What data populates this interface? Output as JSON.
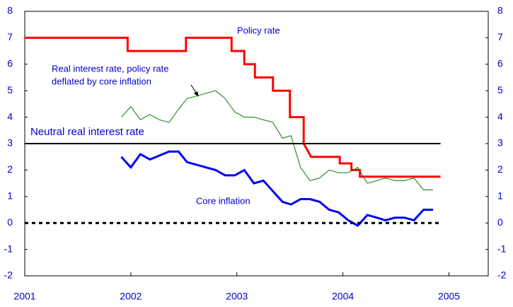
{
  "chart_data": {
    "type": "line",
    "xlim": [
      2001,
      2005.37
    ],
    "xticks": [
      2001,
      2002,
      2003,
      2004,
      2005
    ],
    "ylim": [
      -2,
      8
    ],
    "yticks": [
      -2,
      -1,
      0,
      1,
      2,
      3,
      4,
      5,
      6,
      7,
      8
    ],
    "y2lim": [
      -2,
      8
    ],
    "y2ticks": [
      -2,
      -1,
      0,
      1,
      2,
      3,
      4,
      5,
      6,
      7,
      8
    ],
    "series": [
      {
        "name": "Policy rate",
        "color": "#ff0000",
        "line_width": 3,
        "x": [
          2001,
          2001.97,
          2001.97,
          2002.52,
          2002.52,
          2002.95,
          2002.95,
          2003.07,
          2003.07,
          2003.17,
          2003.17,
          2003.34,
          2003.34,
          2003.5,
          2003.5,
          2003.63,
          2003.63,
          2003.7,
          2003.97,
          2003.97,
          2004.08,
          2004.08,
          2004.16,
          2004.16,
          2004.92
        ],
        "values": [
          7,
          7,
          6.5,
          6.5,
          7,
          7,
          6.5,
          6.5,
          6,
          6,
          5.5,
          5.5,
          5,
          5,
          4,
          4,
          3,
          2.5,
          2.5,
          2.25,
          2.25,
          2,
          2,
          1.75,
          1.75
        ]
      },
      {
        "name_lines": [
          "Real interest rate, policy rate",
          "deflated by core inflation"
        ],
        "color": "#008000",
        "line_width": 1,
        "x": [
          2001.91,
          2002.0,
          2002.09,
          2002.18,
          2002.27,
          2002.36,
          2002.45,
          2002.53,
          2002.62,
          2002.71,
          2002.8,
          2002.89,
          2002.98,
          2003.07,
          2003.16,
          2003.25,
          2003.34,
          2003.43,
          2003.51,
          2003.6,
          2003.69,
          2003.78,
          2003.87,
          2003.96,
          2004.05,
          2004.14,
          2004.23,
          2004.32,
          2004.4,
          2004.49,
          2004.58,
          2004.67,
          2004.76,
          2004.85
        ],
        "values": [
          4.0,
          4.4,
          3.9,
          4.1,
          3.9,
          3.8,
          4.3,
          4.7,
          4.8,
          4.9,
          5.0,
          4.7,
          4.2,
          4.0,
          4.0,
          3.9,
          3.8,
          3.2,
          3.3,
          2.1,
          1.6,
          1.7,
          2.0,
          1.9,
          1.9,
          2.1,
          1.5,
          1.6,
          1.7,
          1.6,
          1.6,
          1.7,
          1.25,
          1.25
        ]
      },
      {
        "name": "Neutral real interest rate",
        "color": "#000000",
        "line_width": 2,
        "x": [
          2001,
          2004.92
        ],
        "values": [
          3,
          3
        ]
      },
      {
        "name": "Core inflation",
        "color": "#0000ff",
        "line_width": 3,
        "x": [
          2001.91,
          2002.0,
          2002.09,
          2002.18,
          2002.27,
          2002.36,
          2002.45,
          2002.53,
          2002.62,
          2002.71,
          2002.8,
          2002.89,
          2002.98,
          2003.07,
          2003.16,
          2003.25,
          2003.34,
          2003.43,
          2003.51,
          2003.6,
          2003.69,
          2003.78,
          2003.87,
          2003.96,
          2004.05,
          2004.14,
          2004.23,
          2004.32,
          2004.4,
          2004.49,
          2004.58,
          2004.67,
          2004.76,
          2004.85
        ],
        "values": [
          2.5,
          2.1,
          2.6,
          2.4,
          2.55,
          2.7,
          2.7,
          2.3,
          2.2,
          2.1,
          2.0,
          1.8,
          1.8,
          2.0,
          1.5,
          1.6,
          1.2,
          0.8,
          0.7,
          0.9,
          0.9,
          0.8,
          0.5,
          0.4,
          0.1,
          -0.1,
          0.3,
          0.2,
          0.1,
          0.2,
          0.2,
          0.1,
          0.5,
          0.5
        ]
      },
      {
        "color": "#000000",
        "line_width": 3,
        "dashed": true,
        "x": [
          2001,
          2004.92
        ],
        "values": [
          0,
          0
        ]
      }
    ]
  }
}
